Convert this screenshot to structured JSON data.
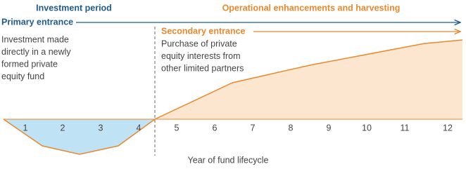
{
  "phases": {
    "investment": "Investment period",
    "operational": "Operational enhancements and harvesting"
  },
  "primary": {
    "title": "Primary entrance",
    "lines": [
      "Investment made",
      "directly in a newly",
      "formed private",
      "equity fund"
    ]
  },
  "secondary": {
    "title": "Secondary entrance",
    "lines": [
      "Purchase of private",
      "equity interests from",
      "other limited partners"
    ]
  },
  "years": [
    1,
    2,
    3,
    4,
    5,
    6,
    7,
    8,
    9,
    10,
    11,
    12
  ],
  "axis_label": "Year of fund lifecycle"
}
